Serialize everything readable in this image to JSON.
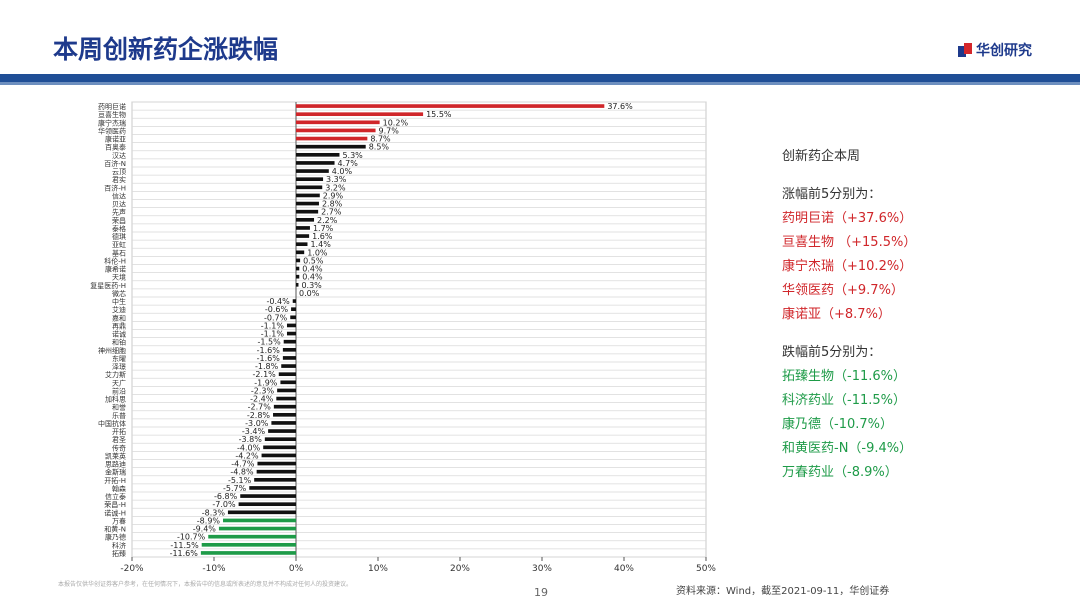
{
  "title": "本周创新药企涨跌幅",
  "brand": "华创研究",
  "footnote": "本报告仅供华创证券客户参考，在任何情况下，本报告中的信息或所表述的意见并不构成对任何人的投资建议。",
  "page_number": "19",
  "source": "资料来源：Wind，截至2021-09-11，华创证券",
  "colors": {
    "positive_top": "#d0262a",
    "neutral": "#111111",
    "negative_bottom": "#1e9b48",
    "header": "#1e3a8c"
  },
  "panel": {
    "intro": "创新药企本周",
    "up_header": "涨幅前5分别为：",
    "up": [
      "药明巨诺（+37.6%）",
      "亘喜生物 （+15.5%）",
      "康宁杰瑞（+10.2%）",
      "华领医药（+9.7%）",
      "康诺亚（+8.7%）"
    ],
    "down_header": "跌幅前5分别为：",
    "down": [
      "拓臻生物（-11.6%）",
      "科济药业（-11.5%）",
      "康乃德（-10.7%）",
      "和黄医药-N（-9.4%）",
      "万春药业（-8.9%）"
    ]
  },
  "chart_data": {
    "type": "bar",
    "orientation": "horizontal",
    "title": "",
    "xlabel": "",
    "ylabel": "",
    "xlim": [
      -20,
      50
    ],
    "xticks": [
      -20,
      -10,
      0,
      10,
      20,
      30,
      40,
      50
    ],
    "xtick_labels": [
      "-20%",
      "-10%",
      "0%",
      "10%",
      "20%",
      "30%",
      "40%",
      "50%"
    ],
    "grid": true,
    "categories": [
      "药明巨诺",
      "亘喜生物",
      "康宁杰瑞",
      "华领医药",
      "康诺亚",
      "百奥泰",
      "汉达",
      "百济-N",
      "云顶",
      "君实",
      "百济-H",
      "信达",
      "贝达",
      "先声",
      "荣昌",
      "泰格",
      "德琪",
      "亚虹",
      "基石",
      "科伦-H",
      "康希诺",
      "天境",
      "复星医药-H",
      "微芯",
      "中生",
      "艾迪",
      "嘉和",
      "再鼎",
      "诺诚",
      "和铂",
      "神州细胞",
      "东曜",
      "泽璟",
      "艾力斯",
      "天广",
      "前沿",
      "加科思",
      "和誉",
      "乐普",
      "中国抗体",
      "开拓",
      "君圣",
      "传奇",
      "凯莱英",
      "思路迪",
      "金斯瑞",
      "开拓-H",
      "翰森",
      "信立泰",
      "荣昌-H",
      "诺诚-H",
      "万春",
      "和黄-N",
      "康乃德",
      "科济",
      "拓臻"
    ],
    "values": [
      37.6,
      15.5,
      10.2,
      9.7,
      8.7,
      8.5,
      5.3,
      4.7,
      4.0,
      3.3,
      3.2,
      2.9,
      2.8,
      2.7,
      2.2,
      1.7,
      1.6,
      1.4,
      1.0,
      0.5,
      0.4,
      0.4,
      0.3,
      0.0,
      -0.4,
      -0.6,
      -0.7,
      -1.1,
      -1.1,
      -1.5,
      -1.6,
      -1.6,
      -1.8,
      -2.1,
      -1.9,
      -2.3,
      -2.4,
      -2.7,
      -2.8,
      -3.0,
      -3.4,
      -3.8,
      -4.0,
      -4.2,
      -4.7,
      -4.8,
      -5.1,
      -5.7,
      -6.8,
      -7.0,
      -8.3,
      -8.9,
      -9.4,
      -10.7,
      -11.5,
      -11.6
    ],
    "value_labels": [
      "37.6%",
      "15.5%",
      "10.2%",
      "9.7%",
      "8.7%",
      "8.5%",
      "5.3%",
      "4.7%",
      "4.0%",
      "3.3%",
      "3.2%",
      "2.9%",
      "2.8%",
      "2.7%",
      "2.2%",
      "1.7%",
      "1.6%",
      "1.4%",
      "1.0%",
      "0.5%",
      "0.4%",
      "0.4%",
      "0.3%",
      "0.0%",
      "-0.4%",
      "-0.6%",
      "-0.7%",
      "-1.1%",
      "-1.1%",
      "-1.5%",
      "-1.6%",
      "-1.6%",
      "-1.8%",
      "-2.1%",
      "-1.9%",
      "-2.3%",
      "-2.4%",
      "-2.7%",
      "-2.8%",
      "-3.0%",
      "-3.4%",
      "-3.8%",
      "-4.0%",
      "-4.2%",
      "-4.7%",
      "-4.8%",
      "-5.1%",
      "-5.7%",
      "-6.8%",
      "-7.0%",
      "-8.3%",
      "-8.9%",
      "-9.4%",
      "-10.7%",
      "-11.5%",
      "-11.6%"
    ],
    "highlight_top_n": 5,
    "highlight_bottom_n": 5
  }
}
